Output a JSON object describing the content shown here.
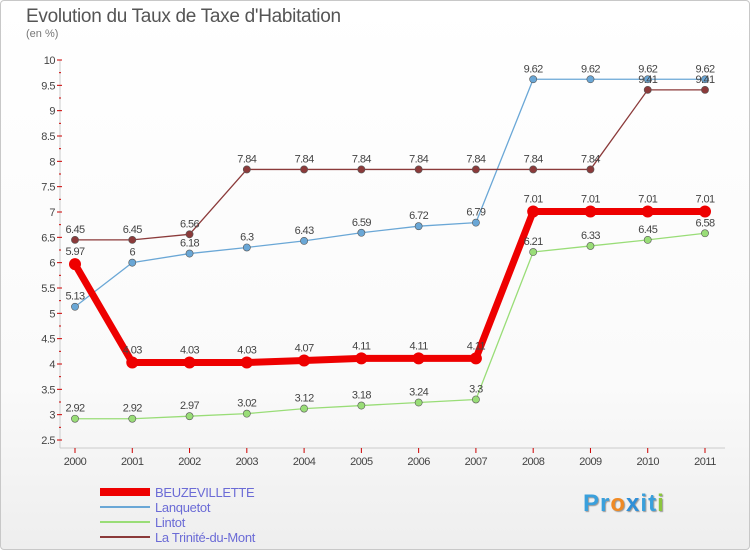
{
  "title": "Evolution du Taux de Taxe d'Habitation",
  "subtitle": "(en %)",
  "logo_text": "Proxiti",
  "chart_data": {
    "type": "line",
    "title": "Evolution du Taux de Taxe d'Habitation",
    "subtitle": "(en %)",
    "xlabel": "",
    "ylabel": "",
    "x": [
      "2000",
      "2001",
      "2002",
      "2003",
      "2004",
      "2005",
      "2006",
      "2007",
      "2008",
      "2009",
      "2010",
      "2011"
    ],
    "ylim": [
      2.5,
      10
    ],
    "yticks": [
      "2.5",
      "3",
      "3.5",
      "4",
      "4.5",
      "5",
      "5.5",
      "6",
      "6.5",
      "7",
      "7.5",
      "8",
      "8.5",
      "9",
      "9.5",
      "10"
    ],
    "grid": "none",
    "legend_position": "bottom-left",
    "series": [
      {
        "name": "BEUZEVILLETTE",
        "color": "#ee0000",
        "emphasis": true,
        "values": [
          5.97,
          4.03,
          4.03,
          4.03,
          4.07,
          4.11,
          4.11,
          4.11,
          7.01,
          7.01,
          7.01,
          7.01
        ],
        "labels": [
          "5.97",
          "4.03",
          "4.03",
          "4.03",
          "4.07",
          "4.11",
          "4.11",
          "4.11",
          "7.01",
          "7.01",
          "7.01",
          "7.01"
        ]
      },
      {
        "name": "Lanquetot",
        "color": "#6aa7d6",
        "values": [
          5.13,
          6,
          6.18,
          6.3,
          6.43,
          6.59,
          6.72,
          6.79,
          9.62,
          9.62,
          9.62,
          9.62
        ],
        "labels": [
          "5.13",
          "6",
          "6.18",
          "6.3",
          "6.43",
          "6.59",
          "6.72",
          "6.79",
          "9.62",
          "9.62",
          "9.62",
          "9.62"
        ]
      },
      {
        "name": "Lintot",
        "color": "#99dd77",
        "values": [
          2.92,
          2.92,
          2.97,
          3.02,
          3.12,
          3.18,
          3.24,
          3.3,
          6.21,
          6.33,
          6.45,
          6.58
        ],
        "labels": [
          "2.92",
          "2.92",
          "2.97",
          "3.02",
          "3.12",
          "3.18",
          "3.24",
          "3.3",
          "6.21",
          "6.33",
          "6.45",
          "6.58"
        ]
      },
      {
        "name": "La Trinité-du-Mont",
        "color": "#8b3a3a",
        "values": [
          6.45,
          6.45,
          6.56,
          7.84,
          7.84,
          7.84,
          7.84,
          7.84,
          7.84,
          7.84,
          9.41,
          9.41
        ],
        "labels": [
          "6.45",
          "6.45",
          "6.56",
          "7.84",
          "7.84",
          "7.84",
          "7.84",
          "7.84",
          "7.84",
          "7.84",
          "9.41",
          "9.41"
        ]
      }
    ]
  }
}
